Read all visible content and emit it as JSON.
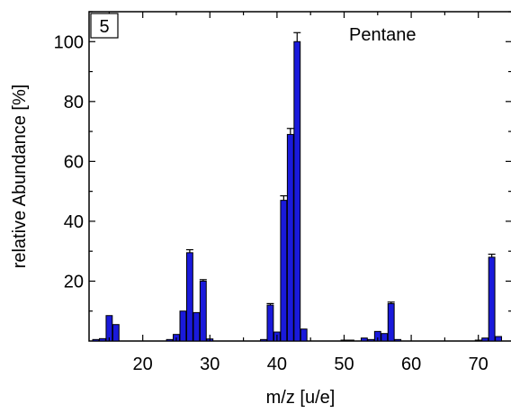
{
  "chart_data": {
    "type": "bar",
    "panel_label": "5",
    "annotation": "Pentane",
    "xlabel": "m/z [u/e]",
    "ylabel": "relative Abundance [%]",
    "xlim": [
      12,
      75
    ],
    "ylim": [
      0,
      110
    ],
    "xticks": [
      20,
      30,
      40,
      50,
      60,
      70
    ],
    "yticks": [
      20,
      40,
      60,
      80,
      100
    ],
    "grid": false,
    "bar_color": "#1a1adb",
    "bars": [
      {
        "x": 13,
        "y": 0.5
      },
      {
        "x": 14,
        "y": 0.8
      },
      {
        "x": 15,
        "y": 8.5,
        "err": 0
      },
      {
        "x": 16,
        "y": 5.5
      },
      {
        "x": 24,
        "y": 0.5
      },
      {
        "x": 25,
        "y": 2.2
      },
      {
        "x": 26,
        "y": 10
      },
      {
        "x": 27,
        "y": 29.5,
        "err": 1
      },
      {
        "x": 28,
        "y": 9.5
      },
      {
        "x": 29,
        "y": 20,
        "err": 0.5
      },
      {
        "x": 30,
        "y": 0.7
      },
      {
        "x": 38,
        "y": 0.5
      },
      {
        "x": 39,
        "y": 12,
        "err": 0.5
      },
      {
        "x": 40,
        "y": 3
      },
      {
        "x": 41,
        "y": 47,
        "err": 1.5
      },
      {
        "x": 42,
        "y": 69,
        "err": 2
      },
      {
        "x": 43,
        "y": 100,
        "err": 3
      },
      {
        "x": 44,
        "y": 4
      },
      {
        "x": 50,
        "y": 0.3
      },
      {
        "x": 51,
        "y": 0.3
      },
      {
        "x": 53,
        "y": 1
      },
      {
        "x": 54,
        "y": 0.5
      },
      {
        "x": 55,
        "y": 3.2
      },
      {
        "x": 56,
        "y": 2.5
      },
      {
        "x": 57,
        "y": 12.5,
        "err": 0.5
      },
      {
        "x": 58,
        "y": 0.5
      },
      {
        "x": 70,
        "y": 0.3
      },
      {
        "x": 71,
        "y": 1
      },
      {
        "x": 72,
        "y": 28,
        "err": 1
      },
      {
        "x": 73,
        "y": 1.5
      }
    ]
  }
}
